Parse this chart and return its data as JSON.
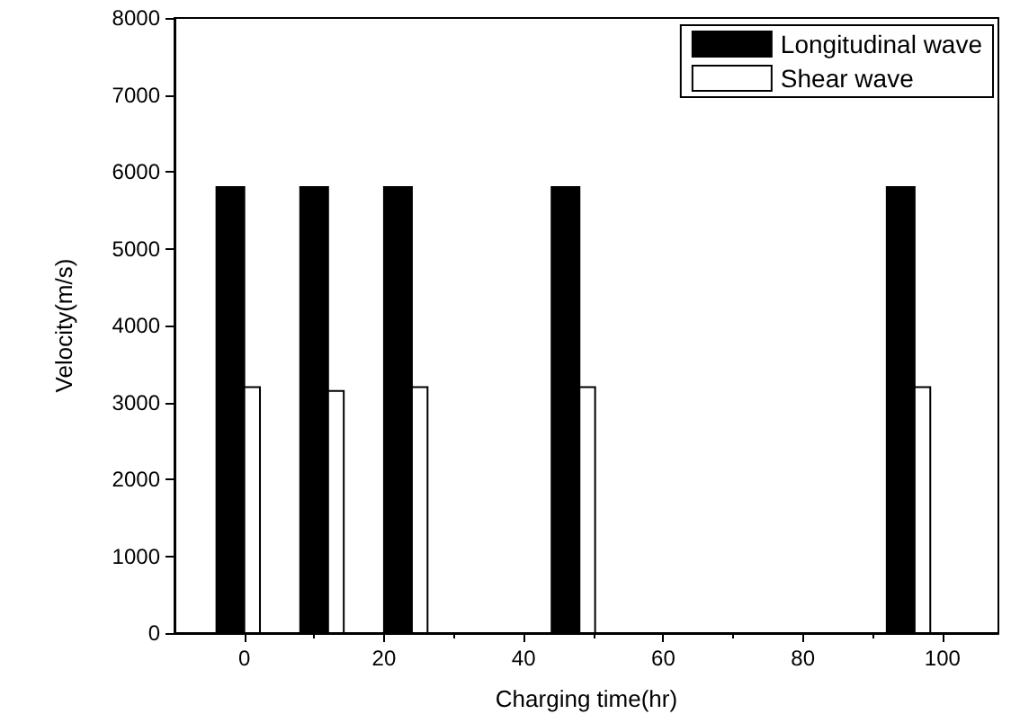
{
  "chart_data": {
    "type": "bar",
    "xlabel": "Charging time(hr)",
    "ylabel": "Velocity(m/s)",
    "x": [
      0,
      12,
      24,
      48,
      96
    ],
    "series": [
      {
        "name": "Longitudinal wave",
        "color": "#000000",
        "values": [
          5800,
          5800,
          5800,
          5800,
          5800
        ]
      },
      {
        "name": "Shear wave",
        "color": "#ffffff",
        "values": [
          3200,
          3150,
          3200,
          3200,
          3200
        ]
      }
    ],
    "xlim": [
      -10,
      108
    ],
    "xticks": [
      0,
      20,
      40,
      60,
      80,
      100
    ],
    "ylim": [
      0,
      8000
    ],
    "yticks": [
      0,
      1000,
      2000,
      3000,
      4000,
      5000,
      6000,
      7000,
      8000
    ],
    "grid": false,
    "legend": "top right"
  }
}
